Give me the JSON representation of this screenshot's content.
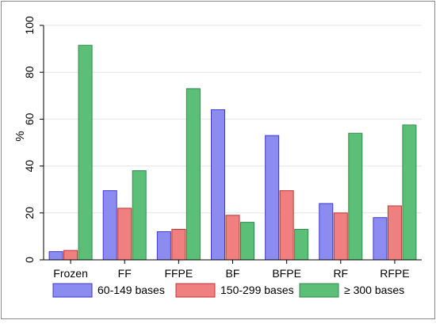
{
  "chart_data": {
    "type": "bar",
    "title": "",
    "xlabel": "",
    "ylabel": "%",
    "ylim": [
      0,
      100
    ],
    "yticks": [
      0,
      20,
      40,
      60,
      80,
      100
    ],
    "grid": true,
    "legend_position": "bottom",
    "categories": [
      "Frozen",
      "FF",
      "FFPE",
      "BF",
      "BFPE",
      "RF",
      "RFPE"
    ],
    "series": [
      {
        "name": "60-149 bases",
        "color": "#8c8cf0",
        "stroke": "#3a3ad0",
        "values": [
          3.5,
          29.5,
          12,
          64,
          53,
          24,
          18
        ]
      },
      {
        "name": "150-299 bases",
        "color": "#f07f7f",
        "stroke": "#c03535",
        "values": [
          4,
          22,
          13,
          19,
          29.5,
          20,
          23
        ]
      },
      {
        "name": "≥ 300 bases",
        "color": "#5cbf77",
        "stroke": "#2f8a4a",
        "values": [
          91.5,
          38,
          73,
          16,
          13,
          54,
          57.5
        ]
      }
    ]
  }
}
